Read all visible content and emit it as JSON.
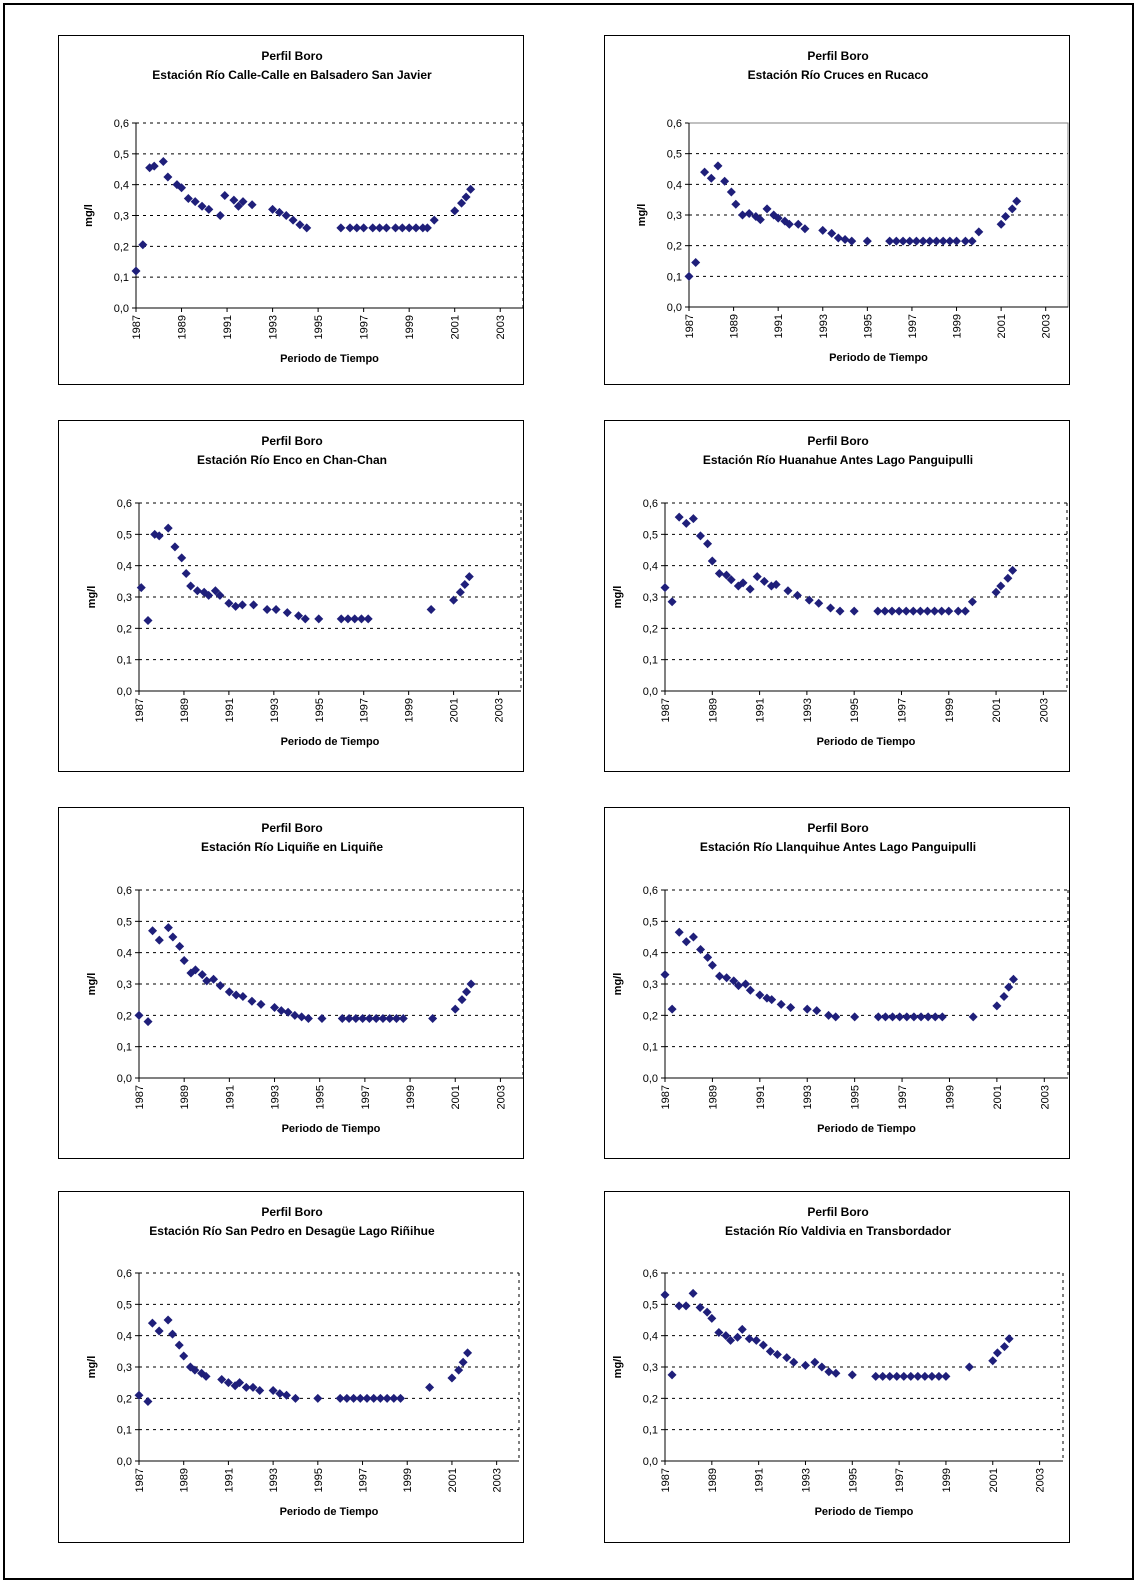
{
  "chart_data": [
    {
      "type": "scatter",
      "title": "Perfil Boro",
      "subtitle": "Estación Río Calle-Calle en Balsadero San Javier",
      "xlabel": "Periodo de Tiempo",
      "ylabel": "mg/l",
      "xlim": [
        1987,
        2004
      ],
      "ylim": [
        0,
        0.6
      ],
      "xticks": [
        "1987",
        "1989",
        "1991",
        "1993",
        "1995",
        "1997",
        "1999",
        "2001",
        "2003"
      ],
      "yticks": [
        "0,0",
        "0,1",
        "0,2",
        "0,3",
        "0,4",
        "0,5",
        "0,6"
      ],
      "grid": "dashed",
      "marker_color": "#1f1f7a",
      "x": [
        1987.0,
        1987.3,
        1987.6,
        1987.8,
        1988.2,
        1988.4,
        1988.8,
        1989.0,
        1989.3,
        1989.6,
        1989.9,
        1990.2,
        1990.7,
        1990.9,
        1991.3,
        1991.5,
        1991.7,
        1992.1,
        1993.0,
        1993.3,
        1993.6,
        1993.9,
        1994.2,
        1994.5,
        1996.0,
        1996.4,
        1996.7,
        1997.0,
        1997.4,
        1997.7,
        1998.0,
        1998.4,
        1998.7,
        1999.0,
        1999.3,
        1999.6,
        1999.8,
        2000.1,
        2001.0,
        2001.3,
        2001.5,
        2001.7
      ],
      "y": [
        0.12,
        0.205,
        0.455,
        0.46,
        0.475,
        0.425,
        0.4,
        0.39,
        0.355,
        0.345,
        0.33,
        0.32,
        0.3,
        0.365,
        0.35,
        0.33,
        0.345,
        0.335,
        0.32,
        0.31,
        0.3,
        0.285,
        0.27,
        0.26,
        0.26,
        0.26,
        0.26,
        0.26,
        0.26,
        0.26,
        0.26,
        0.26,
        0.26,
        0.26,
        0.26,
        0.26,
        0.26,
        0.285,
        0.315,
        0.34,
        0.36,
        0.385
      ]
    },
    {
      "type": "scatter",
      "title": "Perfil Boro",
      "subtitle": "Estación Río Cruces en Rucaco",
      "xlabel": "Periodo de Tiempo",
      "ylabel": "mg/l",
      "xlim": [
        1987,
        2004
      ],
      "ylim": [
        0,
        0.6
      ],
      "xticks": [
        "1987",
        "1989",
        "1991",
        "1993",
        "1995",
        "1997",
        "1999",
        "2001",
        "2003"
      ],
      "yticks": [
        "0,0",
        "0,1",
        "0,2",
        "0,3",
        "0,4",
        "0,5",
        "0,6"
      ],
      "grid": "dashed",
      "marker_color": "#1f1f7a",
      "x": [
        1987.0,
        1987.3,
        1987.7,
        1988.0,
        1988.3,
        1988.6,
        1988.9,
        1989.1,
        1989.4,
        1989.7,
        1990.0,
        1990.2,
        1990.5,
        1990.8,
        1991.0,
        1991.3,
        1991.5,
        1991.9,
        1992.2,
        1993.0,
        1993.4,
        1993.7,
        1994.0,
        1994.3,
        1995.0,
        1996.0,
        1996.3,
        1996.6,
        1996.9,
        1997.2,
        1997.5,
        1997.8,
        1998.1,
        1998.4,
        1998.7,
        1999.0,
        1999.4,
        1999.7,
        2000.0,
        2001.0,
        2001.2,
        2001.5,
        2001.7
      ],
      "y": [
        0.1,
        0.145,
        0.44,
        0.42,
        0.46,
        0.41,
        0.375,
        0.335,
        0.3,
        0.305,
        0.295,
        0.285,
        0.32,
        0.3,
        0.29,
        0.28,
        0.27,
        0.27,
        0.255,
        0.25,
        0.24,
        0.225,
        0.22,
        0.215,
        0.215,
        0.215,
        0.215,
        0.215,
        0.215,
        0.215,
        0.215,
        0.215,
        0.215,
        0.215,
        0.215,
        0.215,
        0.215,
        0.215,
        0.245,
        0.27,
        0.295,
        0.32,
        0.345
      ]
    },
    {
      "type": "scatter",
      "title": "Perfil Boro",
      "subtitle": "Estación Río Enco en Chan-Chan",
      "xlabel": "Periodo de Tiempo",
      "ylabel": "mg/l",
      "xlim": [
        1987,
        2004
      ],
      "ylim": [
        0,
        0.6
      ],
      "xticks": [
        "1987",
        "1989",
        "1991",
        "1993",
        "1995",
        "1997",
        "1999",
        "2001",
        "2003"
      ],
      "yticks": [
        "0,0",
        "0,1",
        "0,2",
        "0,3",
        "0,4",
        "0,5",
        "0,6"
      ],
      "grid": "dashed",
      "marker_color": "#1f1f7a",
      "x": [
        1987.1,
        1987.4,
        1987.7,
        1987.9,
        1988.3,
        1988.6,
        1988.9,
        1989.1,
        1989.3,
        1989.6,
        1989.9,
        1990.1,
        1990.4,
        1990.6,
        1991.0,
        1991.3,
        1991.6,
        1992.1,
        1992.7,
        1993.1,
        1993.6,
        1994.1,
        1994.4,
        1995.0,
        1996.0,
        1996.3,
        1996.6,
        1996.9,
        1997.2,
        2000.0,
        2001.0,
        2001.3,
        2001.5,
        2001.7
      ],
      "y": [
        0.33,
        0.225,
        0.5,
        0.495,
        0.52,
        0.46,
        0.425,
        0.375,
        0.335,
        0.32,
        0.315,
        0.305,
        0.32,
        0.305,
        0.28,
        0.27,
        0.275,
        0.275,
        0.26,
        0.26,
        0.25,
        0.24,
        0.23,
        0.23,
        0.23,
        0.23,
        0.23,
        0.23,
        0.23,
        0.26,
        0.29,
        0.315,
        0.34,
        0.365
      ]
    },
    {
      "type": "scatter",
      "title": "Perfil Boro",
      "subtitle": "Estación Río Huanahue Antes Lago Panguipulli",
      "xlabel": "Periodo de Tiempo",
      "ylabel": "mg/l",
      "xlim": [
        1987,
        2004
      ],
      "ylim": [
        0,
        0.6
      ],
      "xticks": [
        "1987",
        "1989",
        "1991",
        "1993",
        "1995",
        "1997",
        "1999",
        "2001",
        "2003"
      ],
      "yticks": [
        "0,0",
        "0,1",
        "0,2",
        "0,3",
        "0,4",
        "0,5",
        "0,6"
      ],
      "grid": "dashed",
      "marker_color": "#1f1f7a",
      "x": [
        1987.0,
        1987.3,
        1987.6,
        1987.9,
        1988.2,
        1988.5,
        1988.8,
        1989.0,
        1989.3,
        1989.6,
        1989.8,
        1990.1,
        1990.3,
        1990.6,
        1990.9,
        1991.2,
        1991.5,
        1991.7,
        1992.2,
        1992.6,
        1993.1,
        1993.5,
        1994.0,
        1994.4,
        1995.0,
        1996.0,
        1996.3,
        1996.6,
        1996.9,
        1997.2,
        1997.5,
        1997.8,
        1998.1,
        1998.4,
        1998.7,
        1999.0,
        1999.4,
        1999.7,
        2000.0,
        2001.0,
        2001.2,
        2001.5,
        2001.7
      ],
      "y": [
        0.33,
        0.285,
        0.555,
        0.535,
        0.55,
        0.495,
        0.47,
        0.415,
        0.375,
        0.37,
        0.355,
        0.335,
        0.345,
        0.325,
        0.365,
        0.35,
        0.335,
        0.34,
        0.32,
        0.305,
        0.29,
        0.28,
        0.265,
        0.255,
        0.255,
        0.255,
        0.255,
        0.255,
        0.255,
        0.255,
        0.255,
        0.255,
        0.255,
        0.255,
        0.255,
        0.255,
        0.255,
        0.255,
        0.285,
        0.315,
        0.335,
        0.36,
        0.385
      ]
    },
    {
      "type": "scatter",
      "title": "Perfil Boro",
      "subtitle": "Estación Río Liquiñe en Liquiñe",
      "xlabel": "Periodo de Tiempo",
      "ylabel": "mg/l",
      "xlim": [
        1987,
        2004
      ],
      "ylim": [
        0,
        0.6
      ],
      "xticks": [
        "1987",
        "1989",
        "1991",
        "1993",
        "1995",
        "1997",
        "1999",
        "2001",
        "2003"
      ],
      "yticks": [
        "0,0",
        "0,1",
        "0,2",
        "0,3",
        "0,4",
        "0,5",
        "0,6"
      ],
      "grid": "dashed",
      "marker_color": "#1f1f7a",
      "x": [
        1987.0,
        1987.4,
        1987.6,
        1987.9,
        1988.3,
        1988.5,
        1988.8,
        1989.0,
        1989.3,
        1989.5,
        1989.8,
        1990.0,
        1990.3,
        1990.6,
        1991.0,
        1991.3,
        1991.6,
        1992.0,
        1992.4,
        1993.0,
        1993.3,
        1993.6,
        1993.9,
        1994.2,
        1994.5,
        1995.1,
        1996.0,
        1996.3,
        1996.6,
        1996.9,
        1997.2,
        1997.5,
        1997.8,
        1998.1,
        1998.4,
        1998.7,
        2000.0,
        2001.0,
        2001.3,
        2001.5,
        2001.7
      ],
      "y": [
        0.2,
        0.18,
        0.47,
        0.44,
        0.48,
        0.45,
        0.42,
        0.375,
        0.335,
        0.345,
        0.33,
        0.31,
        0.315,
        0.295,
        0.275,
        0.265,
        0.26,
        0.245,
        0.235,
        0.225,
        0.215,
        0.21,
        0.2,
        0.195,
        0.19,
        0.19,
        0.19,
        0.19,
        0.19,
        0.19,
        0.19,
        0.19,
        0.19,
        0.19,
        0.19,
        0.19,
        0.19,
        0.22,
        0.25,
        0.275,
        0.3
      ]
    },
    {
      "type": "scatter",
      "title": "Perfil Boro",
      "subtitle": "Estación Río Llanquihue Antes Lago Panguipulli",
      "xlabel": "Periodo de Tiempo",
      "ylabel": "mg/l",
      "xlim": [
        1987,
        2004
      ],
      "ylim": [
        0,
        0.6
      ],
      "xticks": [
        "1987",
        "1989",
        "1991",
        "1993",
        "1995",
        "1997",
        "1999",
        "2001",
        "2003"
      ],
      "yticks": [
        "0,0",
        "0,1",
        "0,2",
        "0,3",
        "0,4",
        "0,5",
        "0,6"
      ],
      "grid": "dashed",
      "marker_color": "#1f1f7a",
      "x": [
        1987.0,
        1987.3,
        1987.6,
        1987.9,
        1988.2,
        1988.5,
        1988.8,
        1989.0,
        1989.3,
        1989.6,
        1989.9,
        1990.1,
        1990.4,
        1990.6,
        1991.0,
        1991.3,
        1991.5,
        1991.9,
        1992.3,
        1993.0,
        1993.4,
        1993.9,
        1994.2,
        1995.0,
        1996.0,
        1996.3,
        1996.6,
        1996.9,
        1997.2,
        1997.5,
        1997.8,
        1998.1,
        1998.4,
        1998.7,
        2000.0,
        2001.0,
        2001.3,
        2001.5,
        2001.7
      ],
      "y": [
        0.33,
        0.22,
        0.465,
        0.435,
        0.45,
        0.41,
        0.385,
        0.36,
        0.325,
        0.32,
        0.31,
        0.295,
        0.3,
        0.28,
        0.265,
        0.255,
        0.25,
        0.235,
        0.225,
        0.22,
        0.215,
        0.2,
        0.195,
        0.195,
        0.195,
        0.195,
        0.195,
        0.195,
        0.195,
        0.195,
        0.195,
        0.195,
        0.195,
        0.195,
        0.195,
        0.23,
        0.26,
        0.29,
        0.315
      ]
    },
    {
      "type": "scatter",
      "title": "Perfil Boro",
      "subtitle": "Estación Río San Pedro en Desagüe Lago Riñihue",
      "xlabel": "Periodo de Tiempo",
      "ylabel": "mg/l",
      "xlim": [
        1987,
        2004
      ],
      "ylim": [
        0,
        0.6
      ],
      "xticks": [
        "1987",
        "1989",
        "1991",
        "1993",
        "1995",
        "1997",
        "1999",
        "2001",
        "2003"
      ],
      "yticks": [
        "0,0",
        "0,1",
        "0,2",
        "0,3",
        "0,4",
        "0,5",
        "0,6"
      ],
      "grid": "dashed",
      "marker_color": "#1f1f7a",
      "x": [
        1987.0,
        1987.4,
        1987.6,
        1987.9,
        1988.3,
        1988.5,
        1988.8,
        1989.0,
        1989.3,
        1989.5,
        1989.8,
        1990.0,
        1990.7,
        1991.0,
        1991.3,
        1991.5,
        1991.8,
        1992.1,
        1992.4,
        1993.0,
        1993.3,
        1993.6,
        1994.0,
        1995.0,
        1996.0,
        1996.3,
        1996.6,
        1996.9,
        1997.2,
        1997.5,
        1997.8,
        1998.1,
        1998.4,
        1998.7,
        2000.0,
        2001.0,
        2001.3,
        2001.5,
        2001.7
      ],
      "y": [
        0.21,
        0.19,
        0.44,
        0.415,
        0.45,
        0.405,
        0.37,
        0.335,
        0.3,
        0.29,
        0.28,
        0.27,
        0.26,
        0.25,
        0.24,
        0.25,
        0.235,
        0.235,
        0.225,
        0.225,
        0.215,
        0.21,
        0.2,
        0.2,
        0.2,
        0.2,
        0.2,
        0.2,
        0.2,
        0.2,
        0.2,
        0.2,
        0.2,
        0.2,
        0.235,
        0.265,
        0.29,
        0.315,
        0.345
      ]
    },
    {
      "type": "scatter",
      "title": "Perfil Boro",
      "subtitle": "Estación Río Valdivia en Transbordador",
      "xlabel": "Periodo de Tiempo",
      "ylabel": "mg/l",
      "xlim": [
        1987,
        2004
      ],
      "ylim": [
        0,
        0.6
      ],
      "xticks": [
        "1987",
        "1989",
        "1991",
        "1993",
        "1995",
        "1997",
        "1999",
        "2001",
        "2003"
      ],
      "yticks": [
        "0,0",
        "0,1",
        "0,2",
        "0,3",
        "0,4",
        "0,5",
        "0,6"
      ],
      "grid": "dashed",
      "marker_color": "#1f1f7a",
      "x": [
        1987.0,
        1987.3,
        1987.6,
        1987.9,
        1988.2,
        1988.5,
        1988.8,
        1989.0,
        1989.3,
        1989.6,
        1989.8,
        1990.1,
        1990.3,
        1990.6,
        1990.9,
        1991.2,
        1991.5,
        1991.8,
        1992.2,
        1992.5,
        1993.0,
        1993.4,
        1993.7,
        1994.0,
        1994.3,
        1995.0,
        1996.0,
        1996.3,
        1996.6,
        1996.9,
        1997.2,
        1997.5,
        1997.8,
        1998.1,
        1998.4,
        1998.7,
        1999.0,
        2000.0,
        2001.0,
        2001.2,
        2001.5,
        2001.7
      ],
      "y": [
        0.53,
        0.275,
        0.495,
        0.495,
        0.535,
        0.49,
        0.475,
        0.455,
        0.41,
        0.4,
        0.385,
        0.395,
        0.42,
        0.39,
        0.385,
        0.37,
        0.35,
        0.34,
        0.33,
        0.315,
        0.305,
        0.315,
        0.3,
        0.285,
        0.28,
        0.275,
        0.27,
        0.27,
        0.27,
        0.27,
        0.27,
        0.27,
        0.27,
        0.27,
        0.27,
        0.27,
        0.27,
        0.3,
        0.32,
        0.345,
        0.365,
        0.39
      ]
    }
  ]
}
